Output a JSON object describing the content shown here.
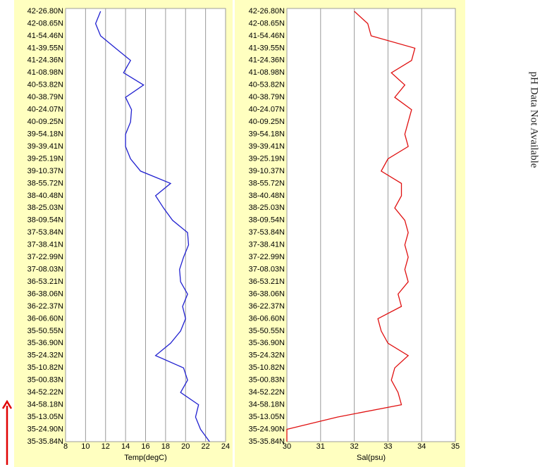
{
  "chart_data": [
    {
      "type": "line",
      "xlabel": "Temp(degC)",
      "categories": [
        "35-35.84N",
        "35-24.90N",
        "35-13.05N",
        "34-58.18N",
        "34-52.22N",
        "35-00.83N",
        "35-10.82N",
        "35-24.32N",
        "35-36.90N",
        "35-50.55N",
        "36-06.60N",
        "36-22.37N",
        "36-38.06N",
        "36-53.21N",
        "37-08.03N",
        "37-22.99N",
        "37-38.41N",
        "37-53.84N",
        "38-09.54N",
        "38-25.03N",
        "38-40.48N",
        "38-55.72N",
        "39-10.37N",
        "39-25.19N",
        "39-39.41N",
        "39-54.18N",
        "40-09.25N",
        "40-24.07N",
        "40-38.79N",
        "40-53.82N",
        "41-08.98N",
        "41-24.36N",
        "41-39.55N",
        "41-54.46N",
        "42-08.65N",
        "42-26.80N"
      ],
      "values": [
        22.4,
        21.5,
        21.0,
        21.3,
        19.5,
        20.2,
        19.8,
        17.0,
        18.5,
        19.5,
        20.0,
        19.7,
        20.2,
        19.5,
        19.4,
        19.8,
        20.3,
        20.2,
        18.7,
        17.8,
        17.0,
        18.5,
        15.5,
        14.5,
        14.0,
        14.0,
        14.5,
        14.6,
        14.0,
        15.8,
        13.8,
        14.5,
        13.0,
        11.5,
        11.0,
        11.5
      ],
      "color": "#2020d0",
      "xlim": [
        8,
        24
      ],
      "xticks": [
        8,
        10,
        12,
        14,
        16,
        18,
        20,
        22,
        24
      ],
      "grid": true
    },
    {
      "type": "line",
      "xlabel": "Sal(psu)",
      "categories": [
        "35-35.84N",
        "35-24.90N",
        "35-13.05N",
        "34-58.18N",
        "34-52.22N",
        "35-00.83N",
        "35-10.82N",
        "35-24.32N",
        "35-36.90N",
        "35-50.55N",
        "36-06.60N",
        "36-22.37N",
        "36-38.06N",
        "36-53.21N",
        "37-08.03N",
        "37-22.99N",
        "37-38.41N",
        "37-53.84N",
        "38-09.54N",
        "38-25.03N",
        "38-40.48N",
        "38-55.72N",
        "39-10.37N",
        "39-25.19N",
        "39-39.41N",
        "39-54.18N",
        "40-09.25N",
        "40-24.07N",
        "40-38.79N",
        "40-53.82N",
        "41-08.98N",
        "41-24.36N",
        "41-39.55N",
        "41-54.46N",
        "42-08.65N",
        "42-26.80N"
      ],
      "values": [
        30.0,
        30.0,
        31.5,
        33.4,
        33.3,
        33.1,
        33.2,
        33.6,
        33.0,
        32.8,
        32.7,
        33.4,
        33.3,
        33.6,
        33.5,
        33.6,
        33.5,
        33.6,
        33.5,
        33.2,
        33.4,
        33.4,
        32.8,
        33.0,
        33.6,
        33.5,
        33.6,
        33.7,
        33.2,
        33.5,
        33.1,
        33.7,
        33.8,
        32.5,
        32.4,
        32.0
      ],
      "color": "#e01010",
      "xlim": [
        30,
        35
      ],
      "xticks": [
        30,
        31,
        32,
        33,
        34,
        35
      ],
      "grid": true
    }
  ],
  "note": "pH Data Not Available"
}
